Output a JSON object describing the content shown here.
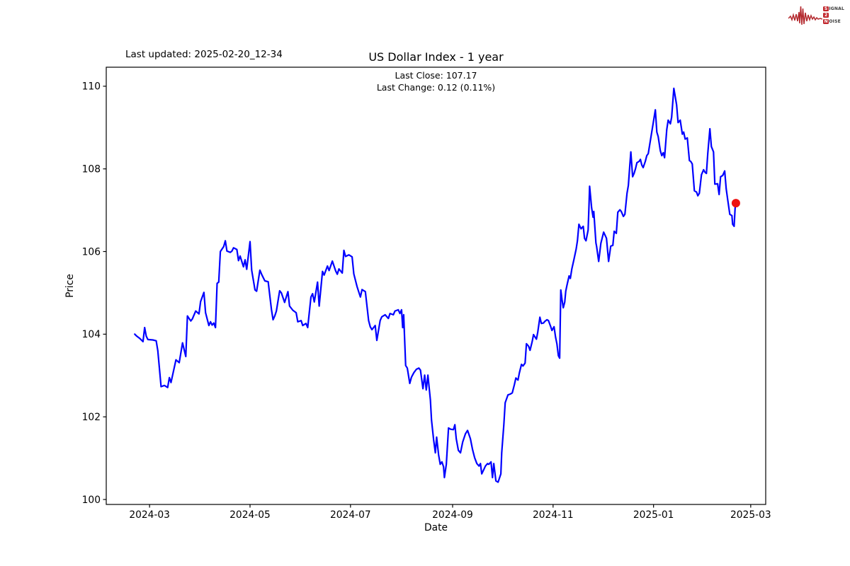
{
  "header": {
    "last_updated": "Last updated: 2025-02-20_12-34",
    "title": "US Dollar Index - 1 year",
    "subtitle_line1": "Last Close: 107.17",
    "subtitle_line2": "Last Change: 0.12 (0.11%)"
  },
  "axes": {
    "x_label": "Date",
    "y_label": "Price"
  },
  "logo": {
    "line1_box": "S",
    "line1_rest": "IGNAL",
    "line2_box": "2",
    "line2_rest": "",
    "line3_box": "N",
    "line3_rest": "OISE",
    "accent_color": "#c1272d"
  },
  "chart_data": {
    "type": "line",
    "title": "US Dollar Index - 1 year",
    "xlabel": "Date",
    "ylabel": "Price",
    "line_color": "#0000ff",
    "marker_color": "#ee1111",
    "x_unit": "days since 2024-02-21",
    "xlim_days": [
      -17.3,
      383.1
    ],
    "ylim": [
      99.88,
      110.46
    ],
    "x_ticks": [
      {
        "day": 9,
        "label": "2024-03"
      },
      {
        "day": 70,
        "label": "2024-05"
      },
      {
        "day": 131,
        "label": "2024-07"
      },
      {
        "day": 193,
        "label": "2024-09"
      },
      {
        "day": 254,
        "label": "2024-11"
      },
      {
        "day": 315,
        "label": "2025-01"
      },
      {
        "day": 374,
        "label": "2025-03"
      }
    ],
    "y_ticks": [
      100,
      102,
      104,
      106,
      108,
      110
    ],
    "last_point": {
      "day": 365,
      "value": 107.17
    },
    "series": [
      {
        "name": "US Dollar Index",
        "points": [
          [
            0,
            104.0
          ],
          [
            1,
            103.96
          ],
          [
            3,
            103.9
          ],
          [
            5,
            103.82
          ],
          [
            6,
            104.16
          ],
          [
            7,
            103.95
          ],
          [
            8,
            103.87
          ],
          [
            11,
            103.86
          ],
          [
            13,
            103.84
          ],
          [
            14,
            103.6
          ],
          [
            16,
            102.73
          ],
          [
            18,
            102.76
          ],
          [
            20,
            102.71
          ],
          [
            21,
            102.95
          ],
          [
            22,
            102.83
          ],
          [
            25,
            103.38
          ],
          [
            27,
            103.31
          ],
          [
            29,
            103.79
          ],
          [
            31,
            103.46
          ],
          [
            32,
            104.44
          ],
          [
            34,
            104.32
          ],
          [
            35,
            104.37
          ],
          [
            37,
            104.56
          ],
          [
            39,
            104.49
          ],
          [
            40,
            104.79
          ],
          [
            42,
            105.01
          ],
          [
            43,
            104.52
          ],
          [
            45,
            104.21
          ],
          [
            46,
            104.3
          ],
          [
            47,
            104.22
          ],
          [
            48,
            104.27
          ],
          [
            49,
            104.16
          ],
          [
            50,
            105.23
          ],
          [
            51,
            105.26
          ],
          [
            52,
            106.0
          ],
          [
            54,
            106.12
          ],
          [
            55,
            106.26
          ],
          [
            56,
            106.01
          ],
          [
            58,
            105.98
          ],
          [
            59,
            106.01
          ],
          [
            60,
            106.09
          ],
          [
            62,
            106.05
          ],
          [
            63,
            105.78
          ],
          [
            64,
            105.89
          ],
          [
            66,
            105.63
          ],
          [
            67,
            105.8
          ],
          [
            68,
            105.57
          ],
          [
            70,
            106.24
          ],
          [
            71,
            105.55
          ],
          [
            73,
            105.07
          ],
          [
            74,
            105.04
          ],
          [
            76,
            105.55
          ],
          [
            77,
            105.45
          ],
          [
            79,
            105.29
          ],
          [
            81,
            105.27
          ],
          [
            83,
            104.6
          ],
          [
            84,
            104.35
          ],
          [
            85,
            104.44
          ],
          [
            86,
            104.56
          ],
          [
            88,
            105.05
          ],
          [
            89,
            105.0
          ],
          [
            91,
            104.77
          ],
          [
            93,
            105.03
          ],
          [
            94,
            104.68
          ],
          [
            96,
            104.58
          ],
          [
            98,
            104.52
          ],
          [
            99,
            104.3
          ],
          [
            101,
            104.33
          ],
          [
            102,
            104.21
          ],
          [
            104,
            104.26
          ],
          [
            105,
            104.16
          ],
          [
            107,
            104.9
          ],
          [
            108,
            104.98
          ],
          [
            109,
            104.78
          ],
          [
            111,
            105.26
          ],
          [
            112,
            104.68
          ],
          [
            114,
            105.52
          ],
          [
            115,
            105.43
          ],
          [
            117,
            105.65
          ],
          [
            118,
            105.54
          ],
          [
            120,
            105.77
          ],
          [
            122,
            105.53
          ],
          [
            123,
            105.45
          ],
          [
            124,
            105.58
          ],
          [
            126,
            105.48
          ],
          [
            127,
            106.03
          ],
          [
            128,
            105.88
          ],
          [
            130,
            105.92
          ],
          [
            132,
            105.87
          ],
          [
            133,
            105.46
          ],
          [
            135,
            105.15
          ],
          [
            137,
            104.9
          ],
          [
            138,
            105.08
          ],
          [
            140,
            105.03
          ],
          [
            142,
            104.33
          ],
          [
            143,
            104.18
          ],
          [
            144,
            104.11
          ],
          [
            146,
            104.21
          ],
          [
            147,
            103.85
          ],
          [
            149,
            104.33
          ],
          [
            150,
            104.42
          ],
          [
            152,
            104.47
          ],
          [
            154,
            104.38
          ],
          [
            155,
            104.5
          ],
          [
            157,
            104.47
          ],
          [
            158,
            104.56
          ],
          [
            160,
            104.59
          ],
          [
            161,
            104.5
          ],
          [
            162,
            104.59
          ],
          [
            162.7,
            104.16
          ],
          [
            163.3,
            104.47
          ],
          [
            164.5,
            103.24
          ],
          [
            165.5,
            103.18
          ],
          [
            167,
            102.81
          ],
          [
            168,
            102.96
          ],
          [
            169.5,
            103.07
          ],
          [
            171,
            103.15
          ],
          [
            172.5,
            103.18
          ],
          [
            173.5,
            103.13
          ],
          [
            175,
            102.68
          ],
          [
            176,
            103.01
          ],
          [
            177,
            102.65
          ],
          [
            178,
            103.01
          ],
          [
            179.5,
            102.41
          ],
          [
            180.2,
            101.92
          ],
          [
            181.5,
            101.44
          ],
          [
            182.5,
            101.13
          ],
          [
            183.3,
            101.51
          ],
          [
            184.5,
            101.08
          ],
          [
            185.5,
            100.85
          ],
          [
            186.5,
            100.91
          ],
          [
            187.5,
            100.79
          ],
          [
            188,
            100.53
          ],
          [
            189.2,
            100.85
          ],
          [
            190.5,
            101.73
          ],
          [
            191.8,
            101.7
          ],
          [
            193.5,
            101.69
          ],
          [
            194.4,
            101.81
          ],
          [
            195.2,
            101.47
          ],
          [
            196.5,
            101.19
          ],
          [
            197.8,
            101.13
          ],
          [
            199.1,
            101.39
          ],
          [
            200.8,
            101.59
          ],
          [
            202.1,
            101.67
          ],
          [
            203.8,
            101.47
          ],
          [
            205.1,
            101.21
          ],
          [
            206.4,
            101.01
          ],
          [
            207.7,
            100.87
          ],
          [
            209,
            100.81
          ],
          [
            209.9,
            100.87
          ],
          [
            210.7,
            100.62
          ],
          [
            212,
            100.73
          ],
          [
            212.9,
            100.81
          ],
          [
            214.2,
            100.87
          ],
          [
            215,
            100.85
          ],
          [
            216.3,
            100.91
          ],
          [
            217.2,
            100.53
          ],
          [
            218,
            100.87
          ],
          [
            219.3,
            100.45
          ],
          [
            220.6,
            100.42
          ],
          [
            222.3,
            100.62
          ],
          [
            222.8,
            101.13
          ],
          [
            224.1,
            101.81
          ],
          [
            224.9,
            102.34
          ],
          [
            226.6,
            102.53
          ],
          [
            228,
            102.55
          ],
          [
            229.2,
            102.58
          ],
          [
            230.5,
            102.78
          ],
          [
            231.4,
            102.94
          ],
          [
            232.7,
            102.89
          ],
          [
            233.5,
            103.06
          ],
          [
            234.8,
            103.27
          ],
          [
            235.7,
            103.23
          ],
          [
            237,
            103.3
          ],
          [
            237.8,
            103.77
          ],
          [
            239.1,
            103.71
          ],
          [
            240,
            103.61
          ],
          [
            241.3,
            103.82
          ],
          [
            242.1,
            103.99
          ],
          [
            243.9,
            103.88
          ],
          [
            244.7,
            104.05
          ],
          [
            246,
            104.41
          ],
          [
            246.9,
            104.26
          ],
          [
            248.2,
            104.27
          ],
          [
            249,
            104.31
          ],
          [
            250.3,
            104.35
          ],
          [
            251.2,
            104.33
          ],
          [
            252.5,
            104.19
          ],
          [
            253.3,
            104.09
          ],
          [
            254.6,
            104.18
          ],
          [
            255.5,
            103.93
          ],
          [
            256.3,
            103.77
          ],
          [
            257.2,
            103.48
          ],
          [
            258,
            103.42
          ],
          [
            258.7,
            105.07
          ],
          [
            259.4,
            104.84
          ],
          [
            260.2,
            104.64
          ],
          [
            261.1,
            104.78
          ],
          [
            261.7,
            105.04
          ],
          [
            262.4,
            105.18
          ],
          [
            263.7,
            105.41
          ],
          [
            264.5,
            105.35
          ],
          [
            265.4,
            105.58
          ],
          [
            266.7,
            105.81
          ],
          [
            268,
            106.06
          ],
          [
            268.8,
            106.26
          ],
          [
            269.7,
            106.66
          ],
          [
            271,
            106.55
          ],
          [
            272.3,
            106.61
          ],
          [
            273.1,
            106.32
          ],
          [
            274,
            106.26
          ],
          [
            275.3,
            106.52
          ],
          [
            275.8,
            107.1
          ],
          [
            276.2,
            107.58
          ],
          [
            277.4,
            107.06
          ],
          [
            278.3,
            106.83
          ],
          [
            278.7,
            106.97
          ],
          [
            280,
            106.21
          ],
          [
            280.4,
            106.13
          ],
          [
            281.7,
            105.76
          ],
          [
            283,
            106.2
          ],
          [
            284.7,
            106.47
          ],
          [
            286.4,
            106.32
          ],
          [
            287.7,
            105.76
          ],
          [
            289,
            106.13
          ],
          [
            290.3,
            106.15
          ],
          [
            291.1,
            106.49
          ],
          [
            292.4,
            106.44
          ],
          [
            293.3,
            106.95
          ],
          [
            294.6,
            107.01
          ],
          [
            295.4,
            106.97
          ],
          [
            296.7,
            106.85
          ],
          [
            297.6,
            106.9
          ],
          [
            298.9,
            107.41
          ],
          [
            299.7,
            107.6
          ],
          [
            300.6,
            108.1
          ],
          [
            301.2,
            108.41
          ],
          [
            302.3,
            107.81
          ],
          [
            303.2,
            107.89
          ],
          [
            304,
            108.0
          ],
          [
            304.9,
            108.15
          ],
          [
            306.2,
            108.18
          ],
          [
            307,
            108.23
          ],
          [
            307.9,
            108.09
          ],
          [
            308.7,
            108.03
          ],
          [
            310,
            108.18
          ],
          [
            310.9,
            108.32
          ],
          [
            311.8,
            108.37
          ],
          [
            316.1,
            109.43
          ],
          [
            317,
            108.89
          ],
          [
            317.8,
            108.78
          ],
          [
            319.1,
            108.44
          ],
          [
            320,
            108.32
          ],
          [
            320.9,
            108.39
          ],
          [
            321.7,
            108.27
          ],
          [
            323,
            108.95
          ],
          [
            323.9,
            109.18
          ],
          [
            325.2,
            109.09
          ],
          [
            326,
            109.25
          ],
          [
            327.3,
            109.95
          ],
          [
            329,
            109.55
          ],
          [
            329.9,
            109.12
          ],
          [
            331.2,
            109.18
          ],
          [
            332.5,
            108.84
          ],
          [
            333.3,
            108.89
          ],
          [
            334.2,
            108.72
          ],
          [
            335.5,
            108.75
          ],
          [
            336.8,
            108.2
          ],
          [
            337.6,
            108.18
          ],
          [
            338.5,
            108.12
          ],
          [
            339.8,
            107.47
          ],
          [
            341.1,
            107.44
          ],
          [
            341.9,
            107.35
          ],
          [
            342.8,
            107.41
          ],
          [
            344.1,
            107.86
          ],
          [
            345.4,
            107.98
          ],
          [
            346.2,
            107.92
          ],
          [
            347.1,
            107.89
          ],
          [
            347.9,
            108.37
          ],
          [
            349.2,
            108.97
          ],
          [
            350.1,
            108.54
          ],
          [
            351.4,
            108.41
          ],
          [
            352.2,
            107.63
          ],
          [
            353.9,
            107.64
          ],
          [
            354.8,
            107.38
          ],
          [
            355.7,
            107.81
          ],
          [
            357,
            107.84
          ],
          [
            358.2,
            107.95
          ],
          [
            359.1,
            107.52
          ],
          [
            360,
            107.26
          ],
          [
            361.3,
            106.9
          ],
          [
            362.6,
            106.87
          ],
          [
            363,
            106.66
          ],
          [
            363.9,
            106.61
          ],
          [
            364.5,
            107.05
          ],
          [
            365,
            107.17
          ]
        ]
      }
    ]
  }
}
